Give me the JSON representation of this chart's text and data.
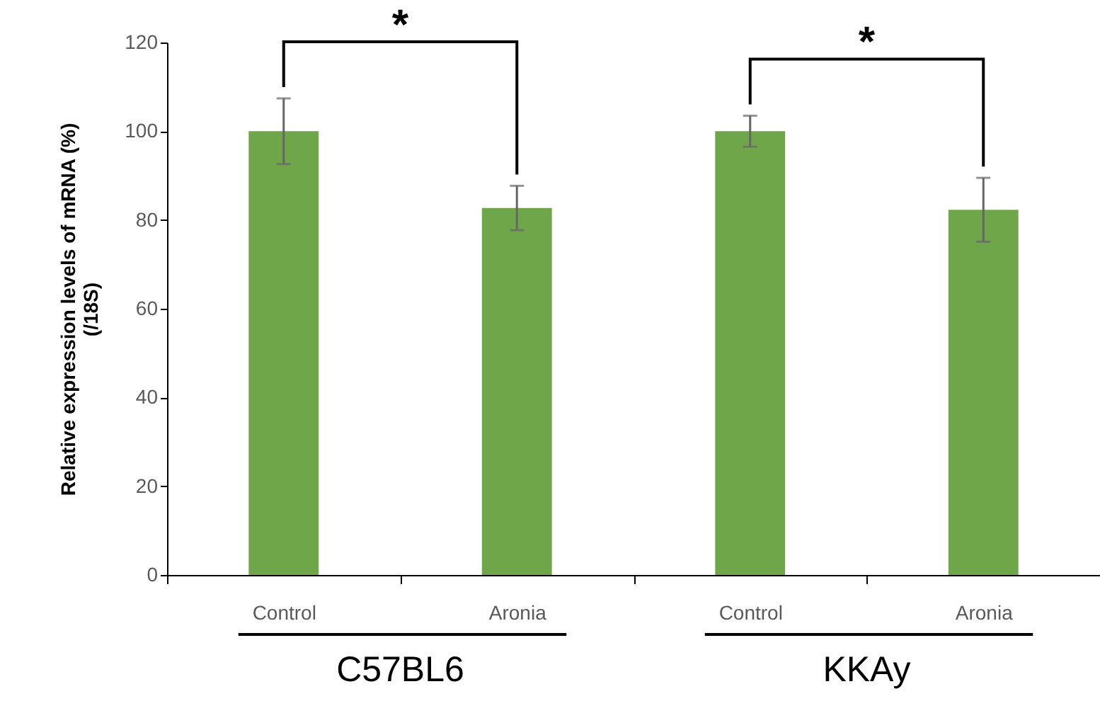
{
  "chart_data": {
    "type": "bar",
    "categories": [
      "Control",
      "Aronia",
      "Control",
      "Aronia"
    ],
    "values": [
      100,
      82.7,
      100,
      82.3
    ],
    "errors": [
      7.4,
      5,
      3.5,
      7.2
    ],
    "color": "#70a64a",
    "ylabel": "Relative expression levels of mRNA (%)\n(/18S)",
    "ylim": [
      0,
      120
    ],
    "yticks": [
      0,
      20,
      40,
      60,
      80,
      100,
      120
    ],
    "grid": false,
    "annotations": [
      "*",
      "*",
      "C57BL6",
      "KKAy"
    ]
  }
}
